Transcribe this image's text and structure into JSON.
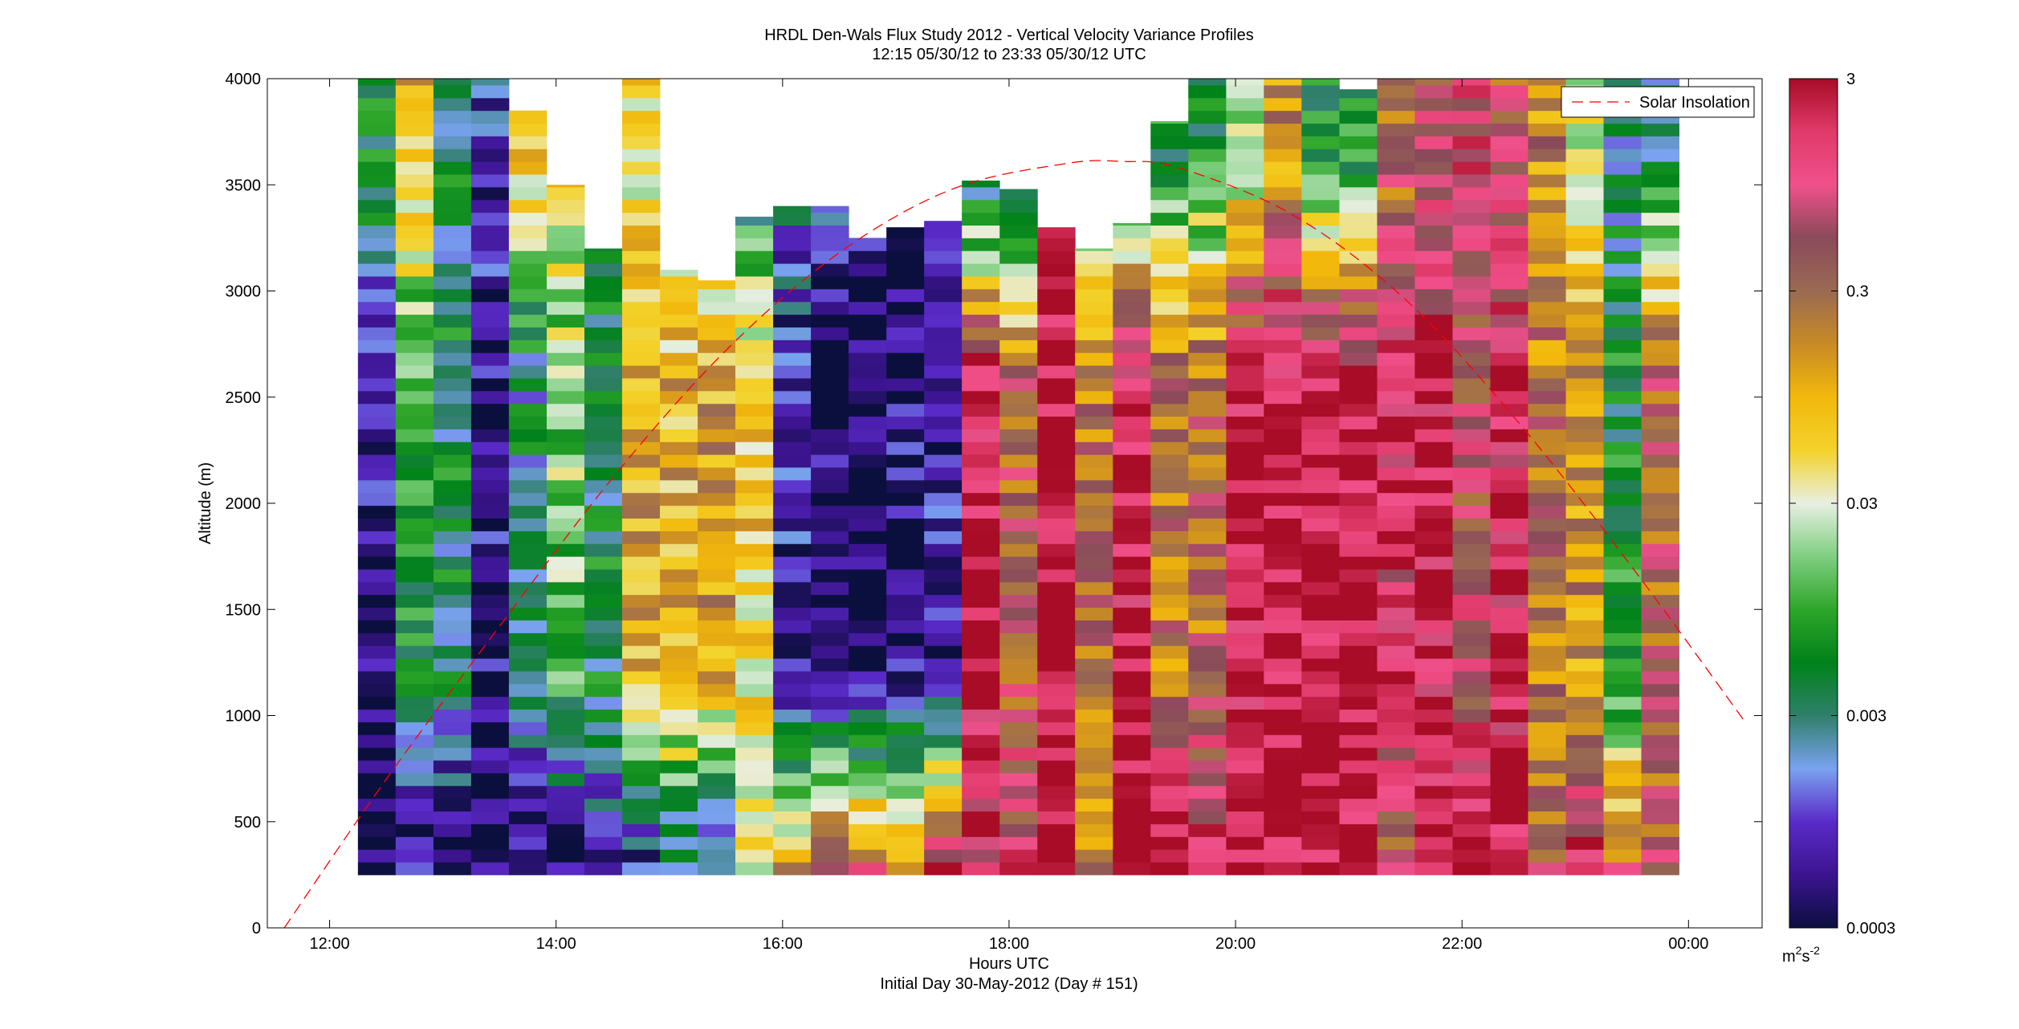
{
  "chart_data": {
    "type": "heatmap",
    "title": "HRDL Den-Wals Flux Study 2012 - Vertical Velocity Variance Profiles",
    "subtitle": "12:15 05/30/12 to 23:33 05/30/12  UTC",
    "xlabel": "Hours UTC",
    "xlabel2": "Initial Day 30-May-2012 (Day # 151)",
    "ylabel": "Altitude (m)",
    "x_hours_ticks": [
      12,
      14,
      16,
      18,
      20,
      22,
      24
    ],
    "x_tick_labels": [
      "12:00",
      "14:00",
      "16:00",
      "18:00",
      "20:00",
      "22:00",
      "00:00"
    ],
    "xlim_hours": [
      11.45,
      24.65
    ],
    "y_ticks": [
      0,
      500,
      1000,
      1500,
      2000,
      2500,
      3000,
      3500,
      4000
    ],
    "y_tick_labels": [
      "0",
      "500",
      "1000",
      "1500",
      "2000",
      "2500",
      "3000",
      "3500",
      "4000"
    ],
    "ylim": [
      0,
      4000
    ],
    "colorbar": {
      "scale": "log",
      "range": [
        0.0003,
        3
      ],
      "ticks": [
        0.0003,
        0.003,
        0.03,
        0.3,
        3
      ],
      "tick_labels": [
        "0.0003",
        "0.003",
        "0.03",
        "0.3",
        "3"
      ],
      "unit_base": "m",
      "unit_exp1": "2",
      "unit_mid": "s",
      "unit_exp2": "-2",
      "stops": [
        "#0b0f3e",
        "#3c1490",
        "#5a2bc8",
        "#7aa2f0",
        "#2f7f6a",
        "#00821a",
        "#2ea62a",
        "#7fcf80",
        "#e8efe2",
        "#f3d22a",
        "#f2b80c",
        "#c88a25",
        "#9a6a52",
        "#8a4a5a",
        "#f0508a",
        "#e03a6a",
        "#a80c26"
      ]
    },
    "legend": {
      "label": "Solar Insolation",
      "color": "#ff0000",
      "placement": "top-right"
    },
    "profile_start_hours": [
      12.25,
      12.583,
      12.917,
      13.25,
      13.583,
      13.917,
      14.25,
      14.583,
      14.917,
      15.25,
      15.583,
      15.917,
      16.25,
      16.583,
      16.917,
      17.25,
      17.583,
      17.917,
      18.25,
      18.583,
      18.917,
      19.25,
      19.583,
      19.917,
      20.25,
      20.583,
      20.917,
      21.25,
      21.583,
      21.917,
      22.25,
      22.583,
      22.917,
      23.25,
      23.583
    ],
    "profile_width_hours": 0.333,
    "profile_bottom_m": 250,
    "profile_top_m": [
      4000,
      4000,
      4000,
      4000,
      3850,
      3500,
      3200,
      4000,
      3100,
      3050,
      3350,
      3400,
      3400,
      3250,
      3300,
      3330,
      3520,
      3480,
      3300,
      3200,
      3320,
      3800,
      4000,
      4000,
      4000,
      4000,
      3950,
      4000,
      4000,
      4000,
      4000,
      4000,
      4000,
      4000,
      4000
    ],
    "profile_low_level_variance": [
      0.0003,
      0.0004,
      0.0003,
      0.0003,
      0.0004,
      0.0003,
      0.0006,
      0.0005,
      0.0015,
      0.0007,
      0.02,
      0.12,
      0.8,
      0.6,
      0.2,
      2.5,
      1.5,
      1.0,
      2.8,
      0.15,
      3.0,
      2.9,
      1.8,
      2.0,
      2.6,
      3.0,
      2.8,
      0.35,
      1.6,
      2.7,
      2.9,
      0.35,
      2.2,
      0.45,
      0.4
    ],
    "profile_mid_level_variance": [
      0.0006,
      0.008,
      0.004,
      0.0005,
      0.003,
      0.015,
      0.004,
      0.1,
      0.1,
      0.12,
      0.06,
      0.0007,
      0.0004,
      0.0003,
      0.0005,
      0.0006,
      2.4,
      0.4,
      2.6,
      0.25,
      2.0,
      0.25,
      0.3,
      2.2,
      2.6,
      2.9,
      2.7,
      1.4,
      2.1,
      0.6,
      1.8,
      0.25,
      0.15,
      0.006,
      0.35
    ],
    "profile_upper_level_variance": [
      0.006,
      0.08,
      0.004,
      0.001,
      0.06,
      0.06,
      0.005,
      0.05,
      0.015,
      0.01,
      0.003,
      0.002,
      0.0015,
      0.0006,
      0.0005,
      0.0008,
      0.001,
      0.0015,
      1.2,
      0.01,
      0.004,
      0.007,
      0.006,
      0.02,
      0.15,
      0.008,
      0.006,
      0.3,
      0.6,
      1.1,
      0.4,
      0.2,
      0.04,
      0.003,
      0.004
    ],
    "solar_insolation_curve": {
      "x_hours": [
        11.6,
        12.5,
        13.5,
        14.5,
        15.5,
        16.5,
        17.5,
        18.5,
        19.0,
        19.5,
        20.5,
        21.5,
        22.5,
        23.5,
        24.5
      ],
      "y_m": [
        0,
        700,
        1420,
        2120,
        2720,
        3180,
        3480,
        3600,
        3610,
        3580,
        3360,
        2960,
        2380,
        1700,
        970
      ]
    }
  }
}
